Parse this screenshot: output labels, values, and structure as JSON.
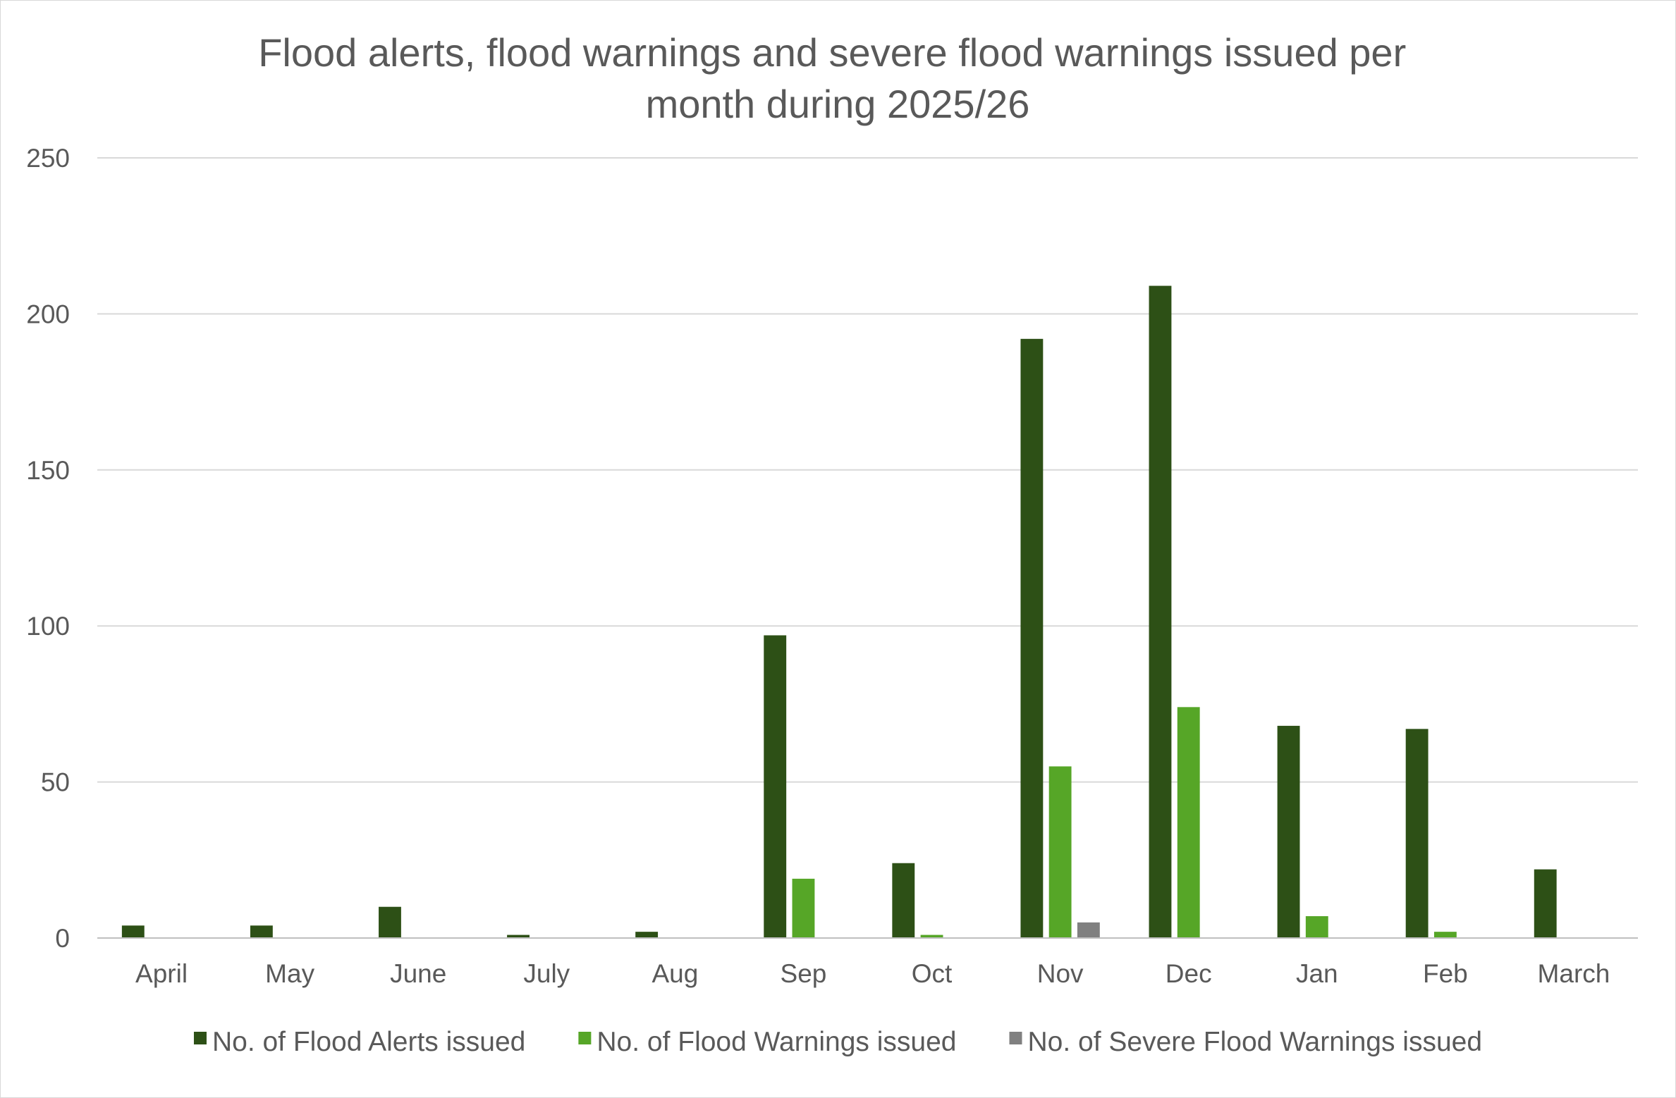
{
  "chart_data": {
    "type": "bar",
    "title": "Flood alerts, flood warnings and severe flood warnings issued per month during 2025/26",
    "title_lines": [
      "Flood alerts, flood warnings and severe flood warnings issued per",
      "month during 2025/26"
    ],
    "xlabel": "",
    "ylabel": "",
    "categories": [
      "April",
      "May",
      "June",
      "July",
      "Aug",
      "Sep",
      "Oct",
      "Nov",
      "Dec",
      "Jan",
      "Feb",
      "March"
    ],
    "series": [
      {
        "name": "No. of Flood Alerts issued",
        "color": "#2d5016",
        "values": [
          4,
          4,
          10,
          1,
          2,
          97,
          24,
          192,
          209,
          68,
          67,
          22
        ]
      },
      {
        "name": "No. of Flood Warnings issued",
        "color": "#56a627",
        "values": [
          0,
          0,
          0,
          0,
          0,
          19,
          1,
          55,
          74,
          7,
          2,
          0
        ]
      },
      {
        "name": "No. of Severe Flood Warnings issued",
        "color": "#808080",
        "values": [
          0,
          0,
          0,
          0,
          0,
          0,
          0,
          5,
          0,
          0,
          0,
          0
        ]
      }
    ],
    "ylim": [
      0,
      250
    ],
    "yticks": [
      0,
      50,
      100,
      150,
      200,
      250
    ],
    "grid": true,
    "legend_position": "bottom"
  }
}
